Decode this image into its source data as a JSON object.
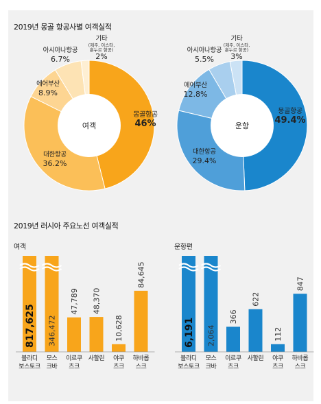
{
  "section1_title": "2019년 몽골 항공사별 여객실적",
  "section2_title": "2019년 러시아 주요노선 여객실적",
  "donut_passenger_center": "여객",
  "donut_flights_center": "운항",
  "bar_passenger_subtitle": "여객",
  "bar_flights_subtitle": "운항편",
  "colors": {
    "orange_strong": "#f8a51b",
    "orange_mid": "#fbbf58",
    "orange_light": "#fdd592",
    "orange_pale": "#fde3b4",
    "orange_paler": "#feefd3",
    "blue_strong": "#1a86cc",
    "blue_mid": "#4f9fd9",
    "blue_light": "#7db8e5",
    "blue_pale": "#a9cfee",
    "blue_paler": "#cbe2f5",
    "panel": "#f1f1f1"
  },
  "chart_data": [
    {
      "type": "pie",
      "center_label": "여객",
      "slices": [
        {
          "name": "몽골항공",
          "value": 46,
          "label": "46%"
        },
        {
          "name": "대한항공",
          "value": 36.2,
          "label": "36.2%"
        },
        {
          "name": "에어부산",
          "value": 8.9,
          "label": "8.9%"
        },
        {
          "name": "아시아나항공",
          "value": 6.7,
          "label": "6.7%"
        },
        {
          "name": "기타",
          "note": "(제주, 이스타, 훈누르 항공)",
          "value": 2,
          "label": "2%"
        }
      ]
    },
    {
      "type": "pie",
      "center_label": "운항",
      "slices": [
        {
          "name": "몽골항공",
          "value": 49.4,
          "label": "49.4%"
        },
        {
          "name": "대한항공",
          "value": 29.4,
          "label": "29.4%"
        },
        {
          "name": "에어부산",
          "value": 12.8,
          "label": "12.8%"
        },
        {
          "name": "아시아나항공",
          "value": 5.5,
          "label": "5.5%"
        },
        {
          "name": "기타",
          "note": "(제주, 이스타, 훈누르 항공)",
          "value": 3,
          "label": "3%"
        }
      ]
    },
    {
      "type": "bar",
      "subtitle": "여객",
      "categories": [
        "블라디 보스토크",
        "모스 크바",
        "이르쿠 츠크",
        "사할린",
        "야쿠 츠크",
        "하바롭 스크"
      ],
      "values": [
        817625,
        346472,
        47789,
        48370,
        10628,
        84645
      ],
      "labels": [
        "817,625",
        "346,472",
        "47,789",
        "48,370",
        "10,628",
        "84,645"
      ],
      "axis_break": true
    },
    {
      "type": "bar",
      "subtitle": "운항편",
      "categories": [
        "블라디 보스토크",
        "모스 크바",
        "이르쿠 츠크",
        "사할린",
        "야쿠 츠크",
        "하바롭 스크"
      ],
      "values": [
        6191,
        2064,
        366,
        622,
        112,
        847
      ],
      "labels": [
        "6,191",
        "2,064",
        "366",
        "622",
        "112",
        "847"
      ],
      "axis_break": true
    }
  ]
}
